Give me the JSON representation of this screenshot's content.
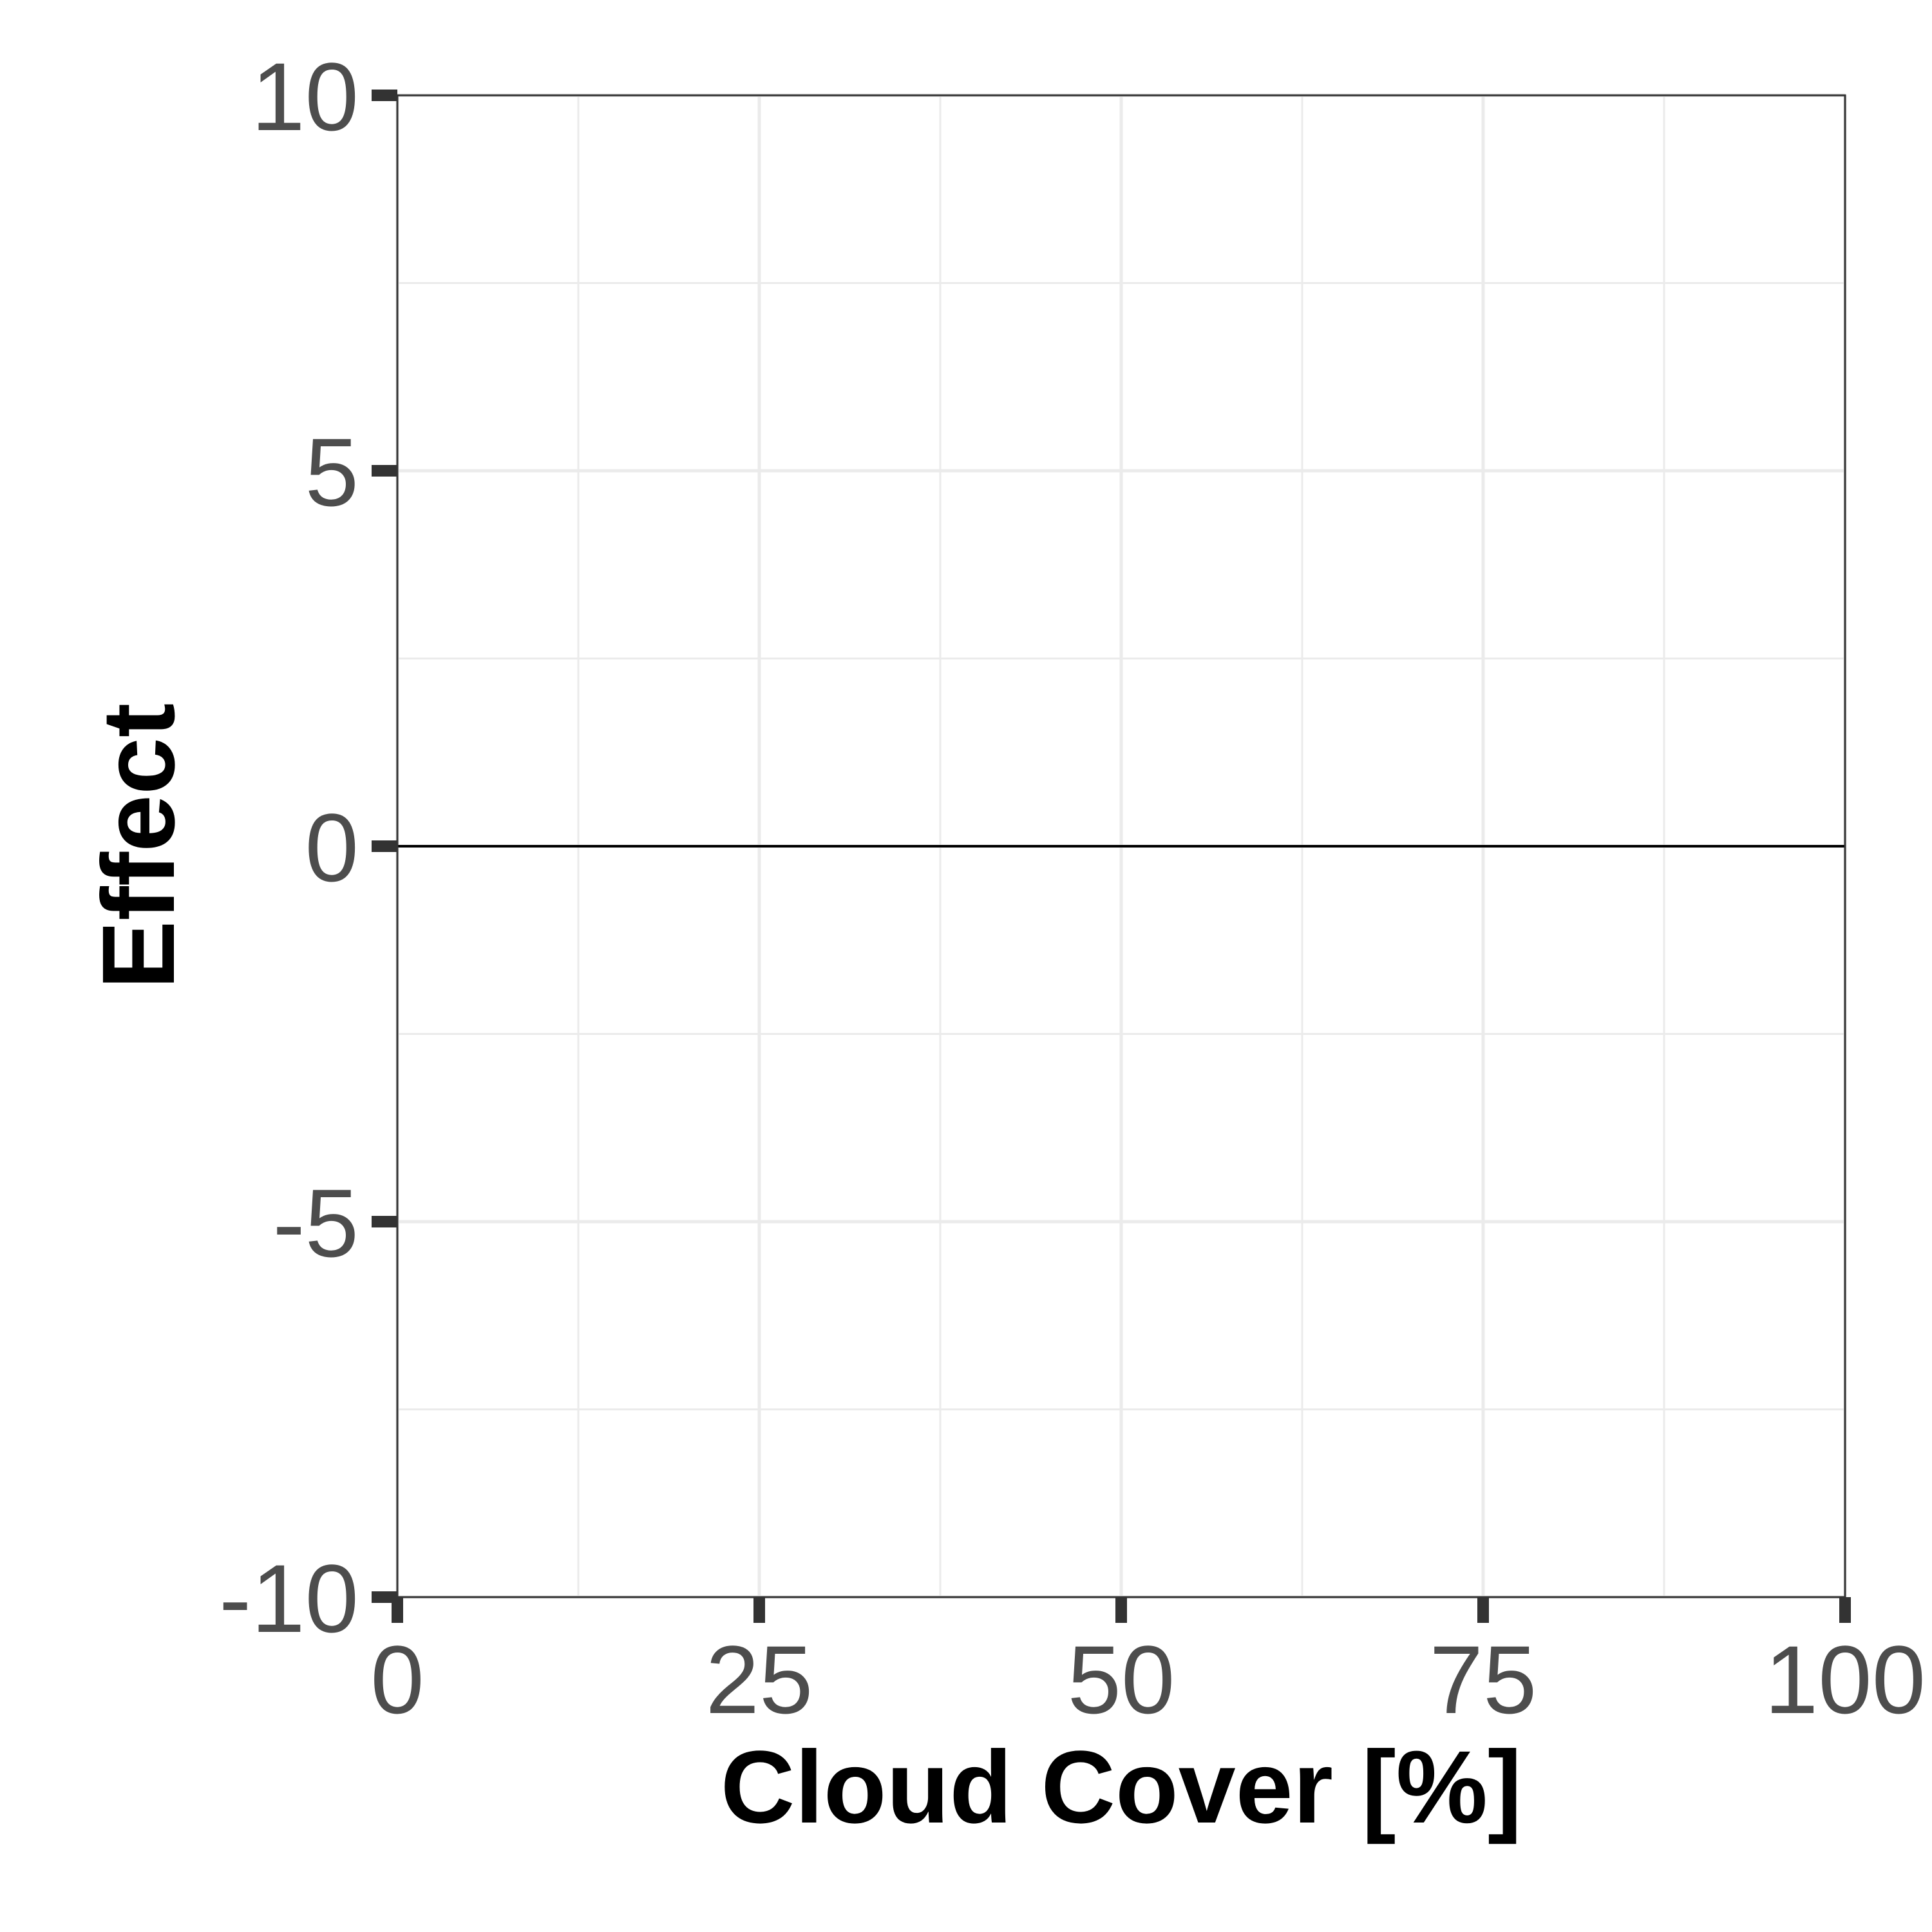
{
  "chart_data": {
    "type": "line",
    "xlabel": "Cloud Cover [%]",
    "ylabel": "Effect",
    "xlim": [
      0,
      100
    ],
    "ylim": [
      -10,
      10
    ],
    "x_ticks": [
      {
        "value": 0,
        "label": "0"
      },
      {
        "value": 25,
        "label": "25"
      },
      {
        "value": 50,
        "label": "50"
      },
      {
        "value": 75,
        "label": "75"
      },
      {
        "value": 100,
        "label": "100"
      }
    ],
    "y_ticks": [
      {
        "value": -10,
        "label": "-10"
      },
      {
        "value": -5,
        "label": "-5"
      },
      {
        "value": 0,
        "label": "0"
      },
      {
        "value": 5,
        "label": "5"
      },
      {
        "value": 10,
        "label": "10"
      }
    ],
    "x_minor": [
      12.5,
      37.5,
      62.5,
      87.5
    ],
    "y_minor": [
      -7.5,
      -2.5,
      2.5,
      7.5
    ],
    "reference_line": {
      "y": 0
    },
    "series": [],
    "grid": true,
    "legend": "none",
    "colors": {
      "grid": "#ebebeb",
      "axis": "#333333",
      "tick_label": "#4d4d4d",
      "title": "#000000",
      "panel_border": "#333333"
    }
  }
}
